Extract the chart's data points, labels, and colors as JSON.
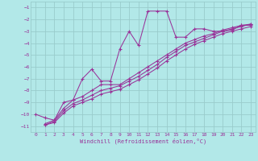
{
  "xlabel": "Windchill (Refroidissement éolien,°C)",
  "xlim": [
    -0.5,
    23.5
  ],
  "ylim": [
    -11.5,
    -0.5
  ],
  "xticks": [
    0,
    1,
    2,
    3,
    4,
    5,
    6,
    7,
    8,
    9,
    10,
    11,
    12,
    13,
    14,
    15,
    16,
    17,
    18,
    19,
    20,
    21,
    22,
    23
  ],
  "yticks": [
    -11,
    -10,
    -9,
    -8,
    -7,
    -6,
    -5,
    -4,
    -3,
    -2,
    -1
  ],
  "bg_color": "#b2e8e8",
  "grid_color": "#99cccc",
  "line_color": "#993399",
  "line1_x": [
    0,
    1,
    2,
    3,
    4,
    5,
    6,
    7,
    8,
    9,
    10,
    11,
    12,
    13,
    14,
    15,
    16,
    17,
    18,
    19,
    20,
    21,
    22,
    23
  ],
  "line1_y": [
    -10.0,
    -10.3,
    -10.5,
    -9.0,
    -8.8,
    -7.0,
    -6.2,
    -7.2,
    -7.2,
    -4.5,
    -3.0,
    -4.2,
    -1.3,
    -1.3,
    -1.3,
    -3.5,
    -3.5,
    -2.8,
    -2.8,
    -3.0,
    -3.0,
    -2.9,
    -2.5,
    -2.5
  ],
  "line2_x": [
    1,
    2,
    3,
    4,
    5,
    6,
    7,
    8,
    9,
    10,
    11,
    12,
    13,
    14,
    15,
    16,
    17,
    18,
    19,
    20,
    21,
    22,
    23
  ],
  "line2_y": [
    -10.8,
    -10.5,
    -9.5,
    -8.8,
    -8.5,
    -8.0,
    -7.5,
    -7.5,
    -7.5,
    -7.0,
    -6.5,
    -6.0,
    -5.5,
    -5.0,
    -4.5,
    -4.0,
    -3.7,
    -3.4,
    -3.2,
    -2.9,
    -2.7,
    -2.5,
    -2.4
  ],
  "line3_x": [
    1,
    2,
    3,
    4,
    5,
    6,
    7,
    8,
    9,
    10,
    11,
    12,
    13,
    14,
    15,
    16,
    17,
    18,
    19,
    20,
    21,
    22,
    23
  ],
  "line3_y": [
    -10.9,
    -10.6,
    -9.7,
    -9.1,
    -8.8,
    -8.4,
    -8.0,
    -7.8,
    -7.6,
    -7.2,
    -6.8,
    -6.3,
    -5.8,
    -5.2,
    -4.7,
    -4.2,
    -3.9,
    -3.6,
    -3.3,
    -3.0,
    -2.8,
    -2.6,
    -2.4
  ],
  "line4_x": [
    1,
    2,
    3,
    4,
    5,
    6,
    7,
    8,
    9,
    10,
    11,
    12,
    13,
    14,
    15,
    16,
    17,
    18,
    19,
    20,
    21,
    22,
    23
  ],
  "line4_y": [
    -10.9,
    -10.7,
    -9.9,
    -9.3,
    -9.0,
    -8.7,
    -8.3,
    -8.1,
    -7.9,
    -7.5,
    -7.1,
    -6.6,
    -6.1,
    -5.5,
    -5.0,
    -4.5,
    -4.1,
    -3.8,
    -3.5,
    -3.2,
    -3.0,
    -2.8,
    -2.6
  ]
}
